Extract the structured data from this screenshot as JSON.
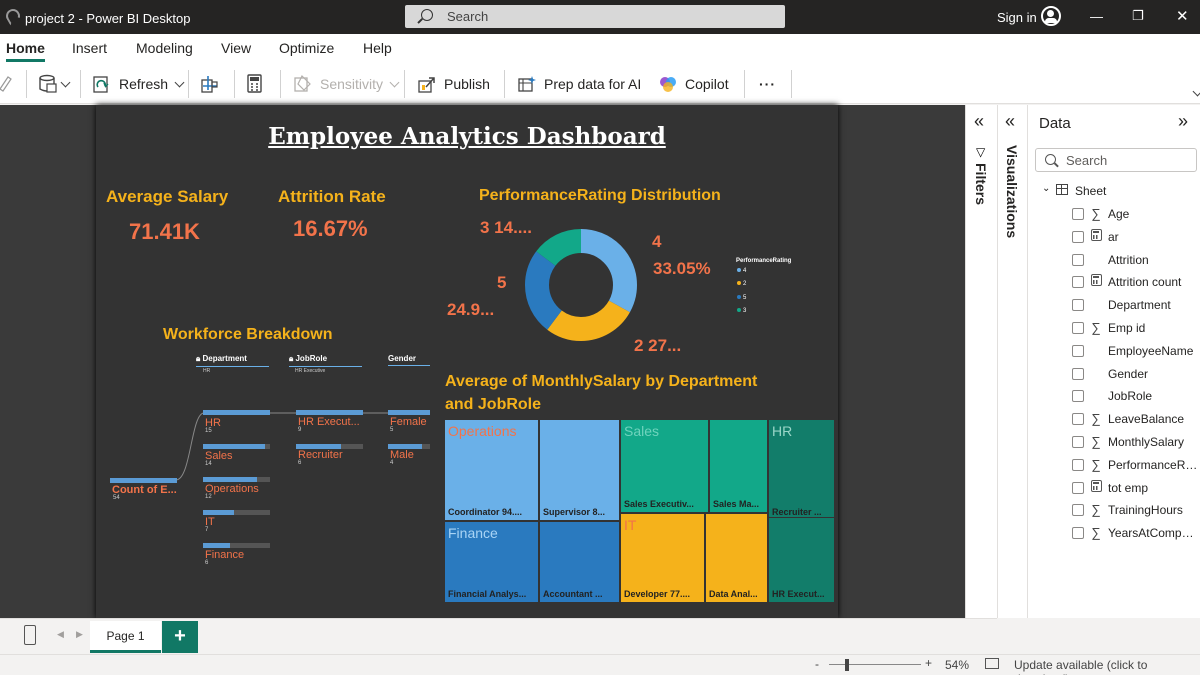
{
  "window": {
    "title": "project 2 - Power BI Desktop",
    "search_placeholder": "Search",
    "sign_in": "Sign in"
  },
  "ribbon": {
    "tabs": [
      "Home",
      "Insert",
      "Modeling",
      "View",
      "Optimize",
      "Help"
    ],
    "active_tab": "Home",
    "buttons": {
      "refresh": "Refresh",
      "sensitivity": "Sensitivity",
      "publish": "Publish",
      "prep_data": "Prep data for AI",
      "copilot": "Copilot",
      "more": "···"
    }
  },
  "report": {
    "title": "Employee Analytics Dashboard",
    "kpis": [
      {
        "label": "Average Salary",
        "value": "71.41K"
      },
      {
        "label": "Attrition Rate",
        "value": "16.67%"
      }
    ],
    "donut": {
      "title": "PerformanceRating Distribution",
      "labels": {
        "top_left": "3 14....",
        "right_name": "4",
        "right_pct": "33.05%",
        "left_name": "5",
        "left_pct": "24.9...",
        "bottom": "2 27..."
      },
      "legend_title": "PerformanceRating",
      "legend": [
        {
          "name": "4",
          "color": "#6ab0e8"
        },
        {
          "name": "2",
          "color": "#f5b21b"
        },
        {
          "name": "5",
          "color": "#2a7abf"
        },
        {
          "name": "3",
          "color": "#12a889"
        }
      ]
    },
    "workforce": {
      "title": "Workforce Breakdown",
      "headers": {
        "department": "Department",
        "department_sub": "HR",
        "jobrole": "JobRole",
        "jobrole_sub": "HR Executive",
        "gender": "Gender"
      },
      "root": {
        "name": "Count of E...",
        "count": "54"
      },
      "departments": [
        {
          "name": "HR",
          "count": "15"
        },
        {
          "name": "Sales",
          "count": "14"
        },
        {
          "name": "Operations",
          "count": "12"
        },
        {
          "name": "IT",
          "count": "7"
        },
        {
          "name": "Finance",
          "count": "6"
        }
      ],
      "jobroles": [
        {
          "name": "HR Execut...",
          "count": "9"
        },
        {
          "name": "Recruiter",
          "count": "6"
        }
      ],
      "genders": [
        {
          "name": "Female",
          "count": "5"
        },
        {
          "name": "Male",
          "count": "4"
        }
      ]
    },
    "treemap": {
      "title_line1": "Average of MonthlySalary by Department",
      "title_line2": "and JobRole",
      "groups": {
        "operations": "Operations",
        "sales": "Sales",
        "hr": "HR",
        "finance": "Finance",
        "it": "IT"
      },
      "cells": {
        "coordinator": "Coordinator 94....",
        "supervisor": "Supervisor 8...",
        "sales_exec": "Sales Executiv...",
        "sales_ma": "Sales Ma...",
        "recruiter": "Recruiter ...",
        "financial": "Financial Analys...",
        "accountant": "Accountant ...",
        "developer": "Developer 77....",
        "data_anal": "Data Anal...",
        "hr_exec": "HR Execut..."
      },
      "colors": {
        "operations": "#6ab0e8",
        "sales": "#12a889",
        "hr": "#127d6a",
        "finance": "#2a7abf",
        "it": "#f5b21b"
      }
    }
  },
  "panes": {
    "filters": "Filters",
    "visualizations": "Visualizations",
    "data": {
      "title": "Data",
      "search_placeholder": "Search",
      "table": "Sheet",
      "fields": [
        {
          "name": "Age",
          "icon": "sigma"
        },
        {
          "name": "ar",
          "icon": "calc"
        },
        {
          "name": "Attrition",
          "icon": ""
        },
        {
          "name": "Attrition count",
          "icon": "calc"
        },
        {
          "name": "Department",
          "icon": ""
        },
        {
          "name": "Emp id",
          "icon": "sigma"
        },
        {
          "name": "EmployeeName",
          "icon": ""
        },
        {
          "name": "Gender",
          "icon": ""
        },
        {
          "name": "JobRole",
          "icon": ""
        },
        {
          "name": "LeaveBalance",
          "icon": "sigma"
        },
        {
          "name": "MonthlySalary",
          "icon": "sigma"
        },
        {
          "name": "PerformanceRat...",
          "icon": "sigma"
        },
        {
          "name": "tot emp",
          "icon": "calc"
        },
        {
          "name": "TrainingHours",
          "icon": "sigma"
        },
        {
          "name": "YearsAtCompany",
          "icon": "sigma"
        }
      ]
    }
  },
  "pages": {
    "current": "Page 1",
    "add": "+"
  },
  "status": {
    "zoom": "54%",
    "update": "Update available (click to download)"
  }
}
